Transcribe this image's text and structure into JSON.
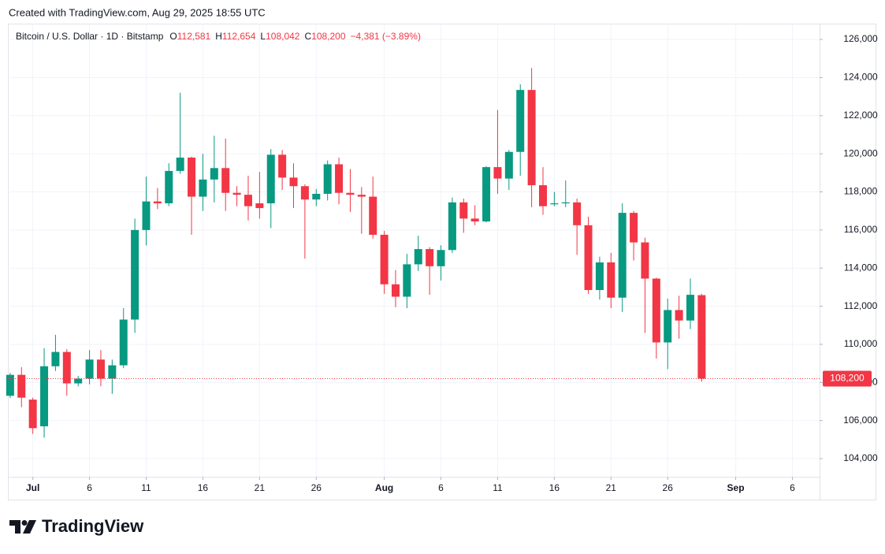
{
  "caption": "Created with TradingView.com, Aug 29, 2025 18:55 UTC",
  "footer": {
    "brand": "TradingView"
  },
  "chart_data": {
    "type": "candlestick",
    "title": "Bitcoin / U.S. Dollar · 1D · Bitstamp",
    "ohlc_legend": [
      {
        "label": "O",
        "text": "112,581"
      },
      {
        "label": "H",
        "text": "112,654"
      },
      {
        "label": "L",
        "text": "108,042"
      },
      {
        "label": "C",
        "text": "108,200"
      },
      {
        "text": "−4,381 (−3.89%)"
      }
    ],
    "up_color": "#089981",
    "down_color": "#f23645",
    "grid": true,
    "x": [
      "2025-06-29",
      "2025-06-30",
      "2025-07-01",
      "2025-07-02",
      "2025-07-03",
      "2025-07-04",
      "2025-07-05",
      "2025-07-06",
      "2025-07-07",
      "2025-07-08",
      "2025-07-09",
      "2025-07-10",
      "2025-07-11",
      "2025-07-12",
      "2025-07-13",
      "2025-07-14",
      "2025-07-15",
      "2025-07-16",
      "2025-07-17",
      "2025-07-18",
      "2025-07-19",
      "2025-07-20",
      "2025-07-21",
      "2025-07-22",
      "2025-07-23",
      "2025-07-24",
      "2025-07-25",
      "2025-07-26",
      "2025-07-27",
      "2025-07-28",
      "2025-07-29",
      "2025-07-30",
      "2025-07-31",
      "2025-08-01",
      "2025-08-02",
      "2025-08-03",
      "2025-08-04",
      "2025-08-05",
      "2025-08-06",
      "2025-08-07",
      "2025-08-08",
      "2025-08-09",
      "2025-08-10",
      "2025-08-11",
      "2025-08-12",
      "2025-08-13",
      "2025-08-14",
      "2025-08-15",
      "2025-08-16",
      "2025-08-17",
      "2025-08-18",
      "2025-08-19",
      "2025-08-20",
      "2025-08-21",
      "2025-08-22",
      "2025-08-23",
      "2025-08-24",
      "2025-08-25",
      "2025-08-26",
      "2025-08-27",
      "2025-08-28",
      "2025-08-29"
    ],
    "open": [
      107300,
      108400,
      107100,
      105700,
      108850,
      109600,
      107950,
      108200,
      109200,
      108200,
      108900,
      111300,
      116000,
      117500,
      117400,
      119100,
      119800,
      117750,
      118650,
      119250,
      117950,
      117850,
      117400,
      117400,
      119950,
      118750,
      118300,
      117600,
      117900,
      119450,
      117950,
      117850,
      117750,
      115750,
      113150,
      112500,
      114200,
      115000,
      114100,
      114950,
      117450,
      116600,
      116450,
      119300,
      118700,
      120100,
      123350,
      118350,
      117350,
      117400,
      117450,
      116250,
      112850,
      114300,
      112450,
      116900,
      115350,
      113450,
      110100,
      111800,
      111250,
      112581
    ],
    "high": [
      108500,
      108800,
      107200,
      109800,
      110500,
      109750,
      108350,
      109700,
      109700,
      109200,
      111900,
      116600,
      118800,
      118200,
      119500,
      123200,
      119850,
      120000,
      120950,
      120800,
      118300,
      118850,
      119050,
      120250,
      120200,
      119500,
      118400,
      118150,
      119650,
      119800,
      119200,
      118250,
      118800,
      115950,
      113900,
      114750,
      115700,
      115100,
      115200,
      117700,
      117650,
      117300,
      119350,
      122300,
      120200,
      123650,
      124500,
      119300,
      118000,
      118600,
      117650,
      116700,
      114600,
      114800,
      117400,
      117000,
      115600,
      113500,
      112400,
      112550,
      113450,
      112654
    ],
    "low": [
      107180,
      106700,
      105300,
      105100,
      108600,
      107300,
      107800,
      107900,
      107800,
      107400,
      108750,
      110600,
      115200,
      117100,
      117250,
      118950,
      115750,
      117000,
      117450,
      117000,
      117250,
      116500,
      116600,
      116100,
      118100,
      117150,
      114500,
      117250,
      117550,
      117350,
      116950,
      115800,
      115550,
      112650,
      111950,
      111900,
      113850,
      112600,
      113350,
      114800,
      115850,
      116250,
      116400,
      117900,
      118100,
      118850,
      117200,
      116800,
      117250,
      117200,
      114700,
      112650,
      112350,
      111900,
      111700,
      114400,
      110600,
      109250,
      108700,
      110300,
      110800,
      108042
    ],
    "close": [
      108400,
      107200,
      105600,
      108850,
      109600,
      107950,
      108200,
      109200,
      108200,
      108900,
      111300,
      116000,
      117500,
      117400,
      119100,
      119800,
      117750,
      118650,
      119250,
      117950,
      117850,
      117250,
      117150,
      119950,
      118750,
      118300,
      117600,
      117900,
      119450,
      117950,
      117850,
      117750,
      115750,
      113150,
      112500,
      114200,
      115000,
      114100,
      114950,
      117450,
      116600,
      116450,
      119300,
      118700,
      120100,
      123350,
      118350,
      117250,
      117400,
      117450,
      116250,
      112850,
      114300,
      112450,
      116900,
      115350,
      113450,
      110100,
      111800,
      111250,
      112600,
      108200
    ],
    "xlim": [
      "2025-06-29",
      "2025-09-08"
    ],
    "xticks": [
      {
        "value": "2025-07-01",
        "label": "Jul"
      },
      {
        "value": "2025-07-06",
        "label": "6"
      },
      {
        "value": "2025-07-11",
        "label": "11"
      },
      {
        "value": "2025-07-16",
        "label": "16"
      },
      {
        "value": "2025-07-21",
        "label": "21"
      },
      {
        "value": "2025-07-26",
        "label": "26"
      },
      {
        "value": "2025-08-01",
        "label": "Aug"
      },
      {
        "value": "2025-08-06",
        "label": "6"
      },
      {
        "value": "2025-08-11",
        "label": "11"
      },
      {
        "value": "2025-08-16",
        "label": "16"
      },
      {
        "value": "2025-08-21",
        "label": "21"
      },
      {
        "value": "2025-08-26",
        "label": "26"
      },
      {
        "value": "2025-09-01",
        "label": "Sep"
      },
      {
        "value": "2025-09-06",
        "label": "6"
      }
    ],
    "ylim": [
      103050,
      126830
    ],
    "yticks": [
      {
        "value": 104000,
        "label": "104,000"
      },
      {
        "value": 106000,
        "label": "106,000"
      },
      {
        "value": 108000,
        "label": "108,000"
      },
      {
        "value": 110000,
        "label": "110,000"
      },
      {
        "value": 112000,
        "label": "112,000"
      },
      {
        "value": 114000,
        "label": "114,000"
      },
      {
        "value": 116000,
        "label": "116,000"
      },
      {
        "value": 118000,
        "label": "118,000"
      },
      {
        "value": 120000,
        "label": "120,000"
      },
      {
        "value": 122000,
        "label": "122,000"
      },
      {
        "value": 124000,
        "label": "124,000"
      },
      {
        "value": 126000,
        "label": "126,000"
      }
    ],
    "last_price": {
      "value": 108200,
      "label": "108,200"
    }
  }
}
